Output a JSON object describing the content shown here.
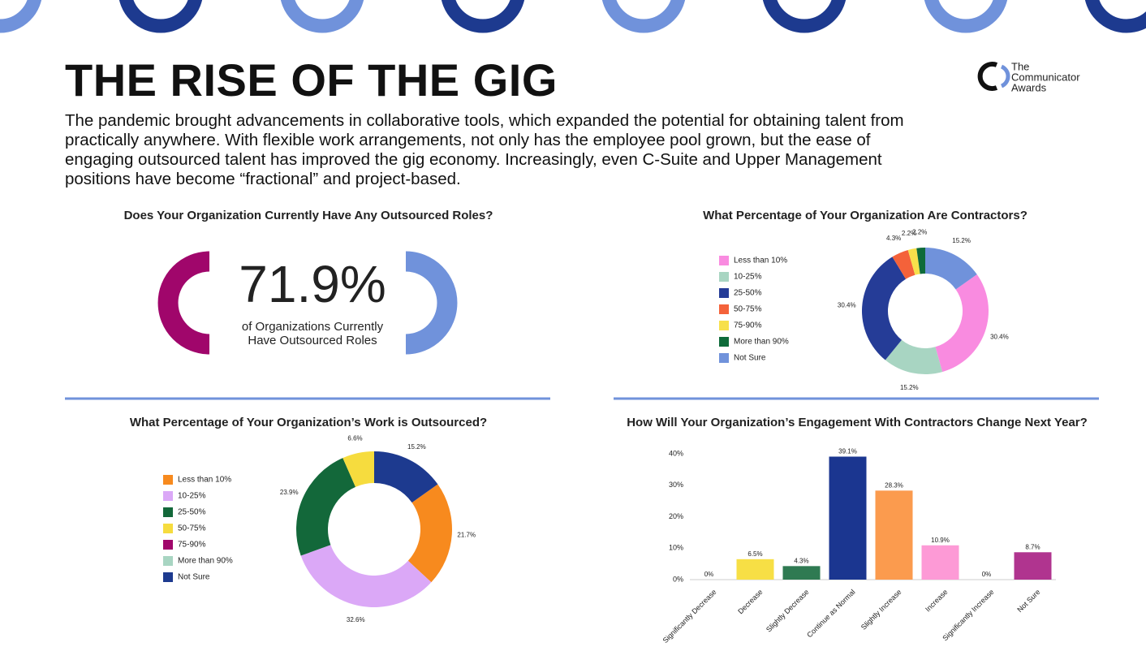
{
  "header": {
    "title": "THE RISE OF THE GIG",
    "body": "The pandemic brought advancements in collaborative tools, which expanded the potential for obtaining talent from practically anywhere. With flexible work arrangements, not only has the employee pool grown, but the ease of engaging outsourced talent has improved the gig economy. Increasingly, even C-Suite and Upper Management positions have become “fractional” and project-based.",
    "logo": [
      "The",
      "Communicator",
      "Awards"
    ]
  },
  "stat": {
    "title": "Does Your Organization Currently Have Any Outsourced Roles?",
    "figure": "71.9%",
    "caption": [
      "of Organizations Currently",
      "Have Outsourced Roles"
    ]
  },
  "chart_data": [
    {
      "type": "donut",
      "title": "What Percentage of Your Organization Are Contractors?",
      "categories": [
        "Less than 10%",
        "10-25%",
        "25-50%",
        "50-75%",
        "75-90%",
        "More than 90%",
        "Not Sure"
      ],
      "values": [
        30.4,
        15.2,
        30.4,
        4.3,
        2.2,
        2.2,
        15.2
      ],
      "value_labels": [
        "30.4%",
        "15.2%",
        "30.4%",
        "4.3%",
        "2.2%",
        "2.2%",
        "15.2%"
      ],
      "colors": [
        "#f98be0",
        "#a8d5c2",
        "#253c97",
        "#f4623a",
        "#f7e04b",
        "#0e6b3a",
        "#7092db"
      ]
    },
    {
      "type": "donut",
      "title": "What Percentage of Your Organization’s Work is Outsourced?",
      "categories": [
        "Less than 10%",
        "10-25%",
        "25-50%",
        "50-75%",
        "75-90%",
        "More than 90%",
        "Not Sure"
      ],
      "values": [
        21.7,
        32.6,
        23.9,
        6.6,
        0,
        0,
        15.2
      ],
      "value_labels": [
        "21.7%",
        "32.6%",
        "23.9%",
        "6.6%",
        null,
        null,
        "15.2%"
      ],
      "colors": [
        "#f78a1e",
        "#dba8f7",
        "#13683a",
        "#f6dc3e",
        "#a0066b",
        "#a8d5c2",
        "#1d3a8f"
      ]
    },
    {
      "type": "bar",
      "title": "How Will Your Organization’s Engagement With Contractors Change Next Year?",
      "categories": [
        "Significantly Decrease",
        "Decrease",
        "Slightly Decrease",
        "Continue as Normal",
        "Slightly Increase",
        "Increase",
        "Significantly Increase",
        "Not Sure"
      ],
      "values": [
        0,
        6.5,
        4.3,
        39.1,
        28.3,
        10.9,
        0,
        8.7
      ],
      "value_labels": [
        "0%",
        "6.5%",
        "4.3%",
        "39.1%",
        "28.3%",
        "10.9%",
        "0%",
        "8.7%"
      ],
      "colors": [
        "#2a3f94",
        "#f7df45",
        "#2f7a52",
        "#1b3690",
        "#fb9b4e",
        "#fd9ad6",
        "#a0066b",
        "#b0348f"
      ],
      "ylim": [
        0,
        40
      ],
      "yticks": [
        {
          "value": 0,
          "label": "0%"
        },
        {
          "value": 10,
          "label": "10%"
        },
        {
          "value": 20,
          "label": "20%"
        },
        {
          "value": 30,
          "label": "30%"
        },
        {
          "value": 40,
          "label": "40%"
        }
      ]
    }
  ]
}
